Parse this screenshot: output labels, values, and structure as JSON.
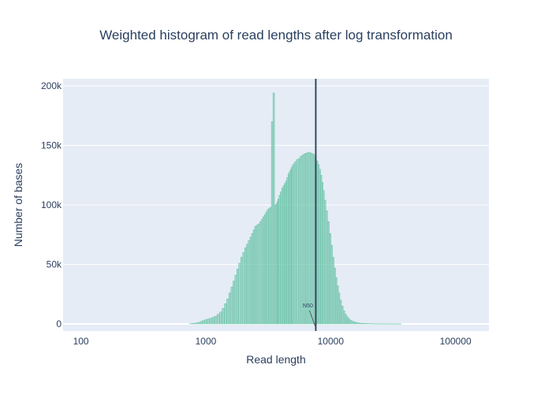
{
  "chart_data": {
    "type": "bar",
    "title": "Weighted histogram of read lengths after log transformation",
    "xlabel": "Read length",
    "ylabel": "Number of bases",
    "x_scale": "log",
    "xlim": [
      72,
      185000
    ],
    "ylim": [
      -6000,
      206000
    ],
    "x_ticks": [
      {
        "value": 100,
        "label": "100"
      },
      {
        "value": 1000,
        "label": "1000"
      },
      {
        "value": 10000,
        "label": "10000"
      },
      {
        "value": 100000,
        "label": "100000"
      }
    ],
    "y_ticks": [
      {
        "value": 0,
        "label": "0"
      },
      {
        "value": 50000,
        "label": "50k"
      },
      {
        "value": 100000,
        "label": "100k"
      },
      {
        "value": 150000,
        "label": "150k"
      },
      {
        "value": 200000,
        "label": "200k"
      }
    ],
    "grid": true,
    "legend": "none",
    "bar_color": "#66c2a5",
    "vline": {
      "x": 7600,
      "label": "N50",
      "color": "#34495e"
    },
    "series": [
      {
        "x": [
          760,
          800,
          840,
          880,
          920,
          960,
          1000,
          1050,
          1100,
          1150,
          1200,
          1260,
          1320,
          1380,
          1440,
          1500,
          1560,
          1620,
          1680,
          1740,
          1800,
          1870,
          1940,
          2010,
          2080,
          2150,
          2220,
          2290,
          2360,
          2430,
          2500,
          2580,
          2660,
          2740,
          2820,
          2900,
          2980,
          3060,
          3140,
          3220,
          3300,
          3400,
          3500,
          3600,
          3700,
          3750,
          3800,
          3900,
          4000,
          4100,
          4200,
          4300,
          4400,
          4500,
          4600,
          4700,
          4800,
          4900,
          5000,
          5200,
          5400,
          5600,
          5800,
          6000,
          6200,
          6400,
          6600,
          6800,
          7000,
          7200,
          7400,
          7600,
          7800,
          8000,
          8200,
          8400,
          8600,
          8800,
          9000,
          9300,
          9600,
          9900,
          10200,
          10500,
          10800,
          11100,
          11400,
          11700,
          12000,
          12400,
          12800,
          13200,
          13600,
          14000,
          14500,
          15000,
          15500,
          16000,
          16500,
          17000,
          17500,
          18000,
          19000,
          20000,
          21000,
          22000,
          23000,
          24000,
          26000,
          28000,
          30000,
          32000,
          35000
        ],
        "values": [
          200,
          400,
          700,
          1200,
          2000,
          2800,
          3500,
          4200,
          4800,
          5500,
          6500,
          8000,
          10000,
          13000,
          17000,
          21000,
          26000,
          31000,
          36000,
          41000,
          46000,
          51000,
          56000,
          60000,
          64000,
          67000,
          70000,
          73000,
          76000,
          79000,
          82000,
          83000,
          84000,
          86000,
          88000,
          90000,
          92000,
          94000,
          96000,
          97000,
          98000,
          170000,
          194000,
          100000,
          101000,
          103000,
          105000,
          108000,
          111000,
          114000,
          116000,
          118000,
          120000,
          123000,
          126000,
          128000,
          130000,
          132000,
          134000,
          136000,
          138000,
          139000,
          141000,
          142000,
          143000,
          143500,
          144000,
          144000,
          143500,
          143000,
          142000,
          140000,
          137000,
          134000,
          130000,
          125000,
          119000,
          112000,
          104000,
          95000,
          86000,
          76000,
          66000,
          56000,
          47000,
          39000,
          32000,
          26000,
          20000,
          15000,
          11000,
          8000,
          6000,
          4300,
          3000,
          2200,
          1600,
          1200,
          900,
          700,
          500,
          400,
          300,
          250,
          200,
          150,
          120,
          100,
          80,
          60,
          50,
          40,
          30
        ]
      }
    ]
  }
}
